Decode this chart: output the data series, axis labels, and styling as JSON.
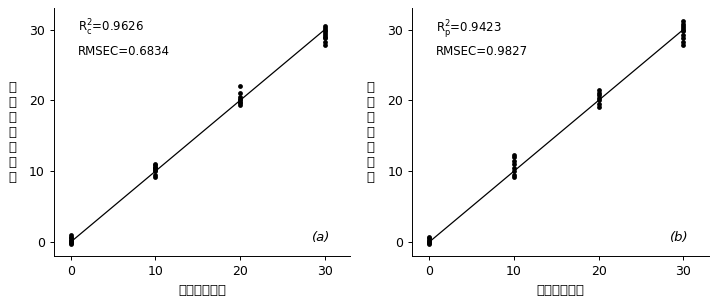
{
  "panel_a": {
    "label": "(a)",
    "ann1_plain": "R",
    "ann1_sub": "c",
    "ann1_val": "=0.9626",
    "ann2": "RMSEC=0.6834",
    "scatter_x": [
      0,
      0,
      0,
      0,
      0,
      0,
      0,
      0,
      0,
      10,
      10,
      10,
      10,
      10,
      10,
      10,
      10,
      10,
      20,
      20,
      20,
      20,
      20,
      20,
      20,
      20,
      30,
      30,
      30,
      30,
      30,
      30,
      30,
      30,
      30,
      30
    ],
    "scatter_y": [
      -0.3,
      -0.1,
      0.0,
      0.1,
      0.2,
      0.3,
      0.5,
      0.7,
      1.0,
      9.2,
      9.5,
      10.0,
      10.2,
      10.4,
      10.5,
      10.6,
      10.8,
      11.0,
      19.3,
      19.6,
      19.8,
      20.0,
      20.2,
      20.5,
      21.0,
      22.0,
      27.8,
      28.3,
      28.8,
      29.0,
      29.2,
      29.5,
      29.8,
      30.0,
      30.2,
      30.5
    ],
    "line_x": [
      0,
      30
    ],
    "line_y": [
      0,
      30
    ]
  },
  "panel_b": {
    "label": "(b)",
    "ann1_plain": "R",
    "ann1_sub": "p",
    "ann1_val": "=0.9423",
    "ann2": "RMSEC=0.9827",
    "scatter_x": [
      0,
      0,
      0,
      0,
      0,
      0,
      0,
      10,
      10,
      10,
      10,
      10,
      10,
      10,
      10,
      20,
      20,
      20,
      20,
      20,
      20,
      20,
      30,
      30,
      30,
      30,
      30,
      30,
      30,
      30,
      30,
      30
    ],
    "scatter_y": [
      -0.3,
      -0.1,
      0.0,
      0.1,
      0.3,
      0.5,
      0.7,
      9.2,
      9.5,
      10.0,
      10.5,
      11.0,
      11.5,
      12.0,
      12.3,
      19.0,
      19.5,
      20.0,
      20.3,
      20.8,
      21.0,
      21.5,
      27.8,
      28.3,
      28.8,
      29.2,
      29.8,
      30.0,
      30.2,
      30.5,
      30.8,
      31.2
    ],
    "line_x": [
      0,
      30
    ],
    "line_y": [
      0,
      30
    ]
  },
  "xlim": [
    -2,
    33
  ],
  "ylim": [
    -2,
    33
  ],
  "xticks": [
    0,
    10,
    20,
    30
  ],
  "yticks": [
    0,
    10,
    20,
    30
  ],
  "xlabel_chars": [
    "实际害虫数量"
  ],
  "ylabel_chars": [
    "预",
    "测",
    "的",
    "害",
    "虫",
    "数",
    "量"
  ],
  "marker_color": "black",
  "marker_size": 12,
  "line_color": "black",
  "line_width": 0.9,
  "background_color": "white",
  "annotation_fontsize": 8.5,
  "label_fontsize": 9.5,
  "tick_fontsize": 9
}
